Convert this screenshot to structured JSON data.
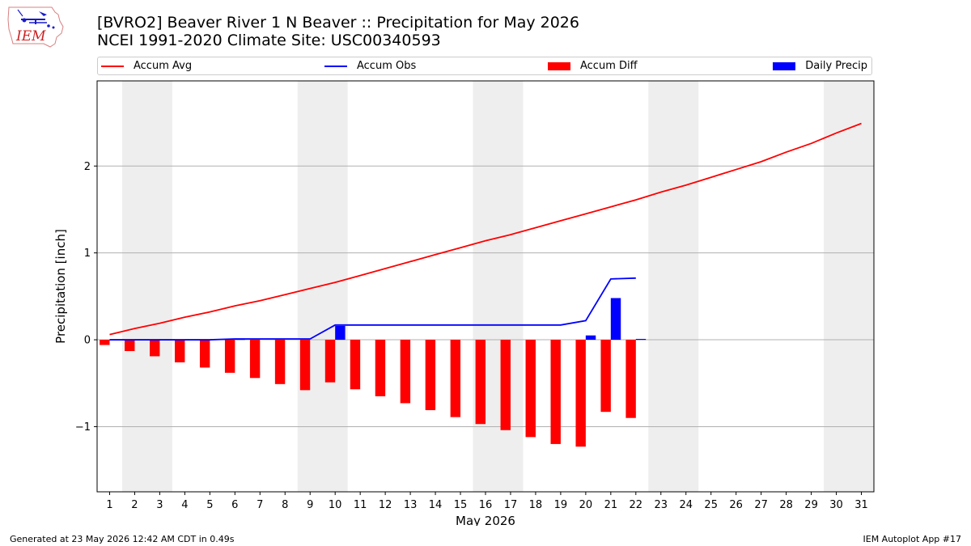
{
  "header": {
    "title_line1": "[BVRO2] Beaver River 1 N Beaver :: Precipitation for May 2026",
    "title_line2": "NCEI 1991-2020 Climate Site: USC00340593",
    "logo_text": "IEM"
  },
  "legend": [
    {
      "label": "Accum Avg",
      "kind": "line",
      "color": "#ff0000"
    },
    {
      "label": "Accum Obs",
      "kind": "line",
      "color": "#0000ff"
    },
    {
      "label": "Accum Diff",
      "kind": "bar",
      "color": "#ff0000"
    },
    {
      "label": "Daily Precip",
      "kind": "bar",
      "color": "#0000ff"
    }
  ],
  "footer": {
    "left": "Generated at 23 May 2026 12:42 AM CDT in 0.49s",
    "right": "IEM Autoplot App #17"
  },
  "chart_data": {
    "type": "bar",
    "title": "[BVRO2] Beaver River 1 N Beaver :: Precipitation for May 2026",
    "subtitle": "NCEI 1991-2020 Climate Site: USC00340593",
    "xlabel": "May 2026",
    "ylabel": "Precipitation [inch]",
    "xlim": [
      0.5,
      31.5
    ],
    "ylim": [
      -1.75,
      2.98
    ],
    "yticks": [
      -1,
      0,
      1,
      2
    ],
    "ytick_labels": [
      "−1",
      "0",
      "1",
      "2"
    ],
    "grid": "horizontal",
    "legend_position": "top",
    "weekend_shading": [
      [
        1.5,
        3.5
      ],
      [
        8.5,
        10.5
      ],
      [
        15.5,
        17.5
      ],
      [
        22.5,
        24.5
      ],
      [
        29.5,
        31.5
      ]
    ],
    "days": [
      1,
      2,
      3,
      4,
      5,
      6,
      7,
      8,
      9,
      10,
      11,
      12,
      13,
      14,
      15,
      16,
      17,
      18,
      19,
      20,
      21,
      22,
      23,
      24,
      25,
      26,
      27,
      28,
      29,
      30,
      31
    ],
    "series": [
      {
        "name": "Accum Avg",
        "type": "line",
        "color": "#ff0000",
        "values": [
          0.06,
          0.13,
          0.19,
          0.26,
          0.32,
          0.39,
          0.45,
          0.52,
          0.59,
          0.66,
          0.74,
          0.82,
          0.9,
          0.98,
          1.06,
          1.14,
          1.21,
          1.29,
          1.37,
          1.45,
          1.53,
          1.61,
          1.7,
          1.78,
          1.87,
          1.96,
          2.05,
          2.16,
          2.26,
          2.38,
          2.49
        ]
      },
      {
        "name": "Accum Obs",
        "type": "line",
        "color": "#0000ff",
        "values": [
          0.0,
          0.0,
          0.0,
          0.0,
          0.0,
          0.01,
          0.01,
          0.01,
          0.01,
          0.17,
          0.17,
          0.17,
          0.17,
          0.17,
          0.17,
          0.17,
          0.17,
          0.17,
          0.17,
          0.22,
          0.7,
          0.71
        ]
      },
      {
        "name": "Accum Diff",
        "type": "bar",
        "color": "#ff0000",
        "values": [
          -0.06,
          -0.13,
          -0.19,
          -0.26,
          -0.32,
          -0.38,
          -0.44,
          -0.51,
          -0.58,
          -0.49,
          -0.57,
          -0.65,
          -0.73,
          -0.81,
          -0.89,
          -0.97,
          -1.04,
          -1.12,
          -1.2,
          -1.23,
          -0.83,
          -0.9
        ]
      },
      {
        "name": "Daily Precip",
        "type": "bar",
        "color": "#0000ff",
        "values": [
          0.0,
          0.0,
          0.0,
          0.0,
          0.0,
          0.01,
          0.0,
          0.0,
          0.0,
          0.16,
          0.0,
          0.0,
          0.0,
          0.0,
          0.0,
          0.0,
          0.0,
          0.0,
          0.0,
          0.05,
          0.48,
          0.01
        ]
      }
    ]
  }
}
